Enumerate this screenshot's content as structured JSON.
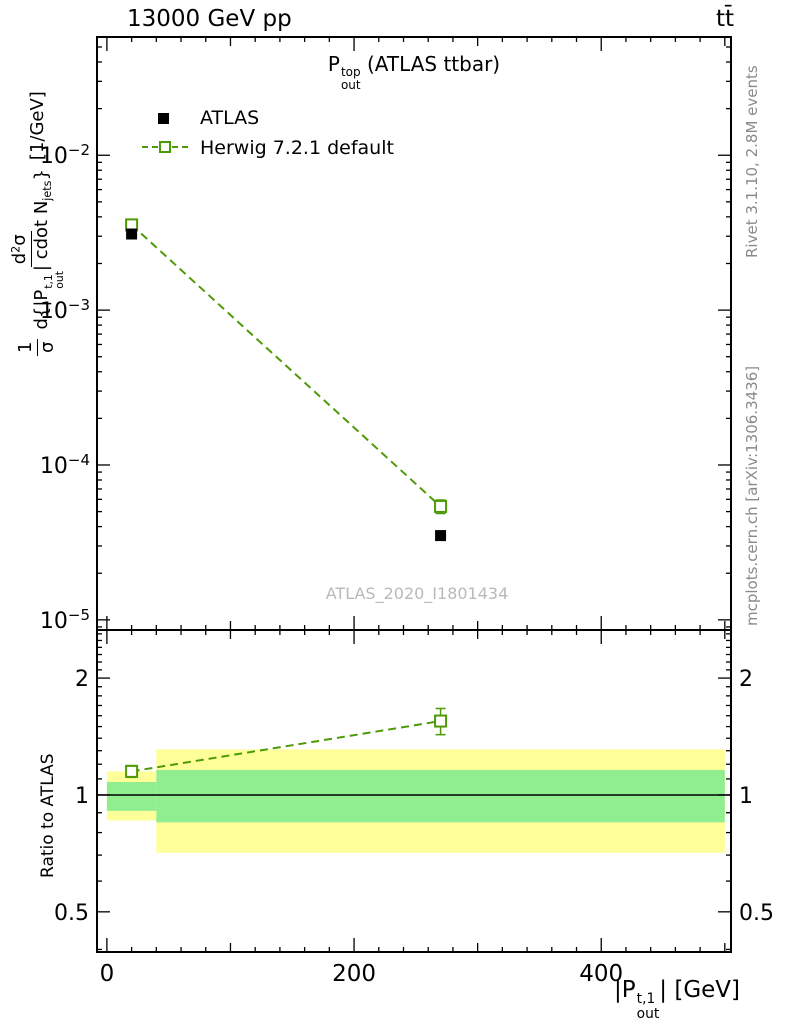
{
  "header": {
    "left_title": "13000 GeV pp",
    "right_title": "tt̄"
  },
  "right_margin": {
    "top": "Rivet 3.1.10,  2.8M events",
    "bottom": "mcplots.cern.ch [arXiv:1306.3436]"
  },
  "main_title": {
    "base": "P",
    "sup": "top",
    "sub": "out",
    "suffix": " (ATLAS ttbar)"
  },
  "legend": {
    "items": [
      {
        "label": "ATLAS",
        "marker": "filled-square",
        "color": "#000000"
      },
      {
        "label": "Herwig 7.2.1 default",
        "marker": "open-square-dashed-line",
        "color": "#4e9a06"
      }
    ]
  },
  "main_panel": {
    "watermark": "ATLAS_2020_I1801434"
  },
  "ylabel_main": {
    "frac1_num": "1",
    "frac1_den": "σ",
    "frac2_num_base": "d",
    "frac2_num_sup": "2",
    "frac2_num_tail": "σ",
    "frac2_den_a": "d{|P",
    "frac2_den_sup": "t,1",
    "frac2_den_sub": "out",
    "frac2_den_b": "| cdot N",
    "frac2_den_sub2": "jets",
    "frac2_den_c": "}",
    "units": "[1/GeV]"
  },
  "ratio_panel": {
    "ylabel": "Ratio to ATLAS"
  },
  "xlabel": {
    "a": "|P",
    "sup": "t,1",
    "sub": "out",
    "b": "| [GeV]"
  },
  "colors": {
    "herwig_green": "#4e9a06",
    "atlas_black": "#000000",
    "band_yellow": "#ffff99",
    "band_green": "#90ee90",
    "frame": "#000000",
    "watermark_gray": "#b9b9b9",
    "margin_text_gray": "#8a8a8a"
  },
  "chart_data": {
    "type": "line",
    "title": "P_out^top (ATLAS ttbar)",
    "xlabel": "|P_out^t,1| [GeV]",
    "xlim": [
      -8,
      505
    ],
    "x_ticks_major": [
      0,
      200,
      400
    ],
    "x_ticks_medium": [
      100,
      300,
      500
    ],
    "x_minor_step": 20,
    "main": {
      "ylabel": "1/σ d²σ/d{|P_out^t,1| cdot N_jets} [1/GeV]",
      "yscale": "log",
      "ylim": [
        8.6e-06,
        0.058
      ],
      "y_ticks": [
        0.01,
        0.001,
        0.0001,
        1e-05
      ],
      "series": [
        {
          "name": "ATLAS",
          "marker": "filled-square",
          "color": "#000000",
          "x": [
            20,
            270
          ],
          "y": [
            0.0031,
            3.5e-05
          ]
        },
        {
          "name": "Herwig 7.2.1 default",
          "marker": "open-square",
          "line": "dashed",
          "color": "#4e9a06",
          "x": [
            20,
            270
          ],
          "y": [
            0.00355,
            5.4e-05
          ],
          "yerr_rel": [
            0.04,
            0.1
          ]
        }
      ]
    },
    "ratio": {
      "ylabel": "Ratio to ATLAS",
      "yscale": "log",
      "ylim": [
        0.394,
        2.66
      ],
      "y_ticks": [
        0.5,
        1,
        2
      ],
      "reference": 1,
      "bands": [
        {
          "x0": 0,
          "x1": 40,
          "yellow": [
            0.86,
            1.15
          ],
          "green": [
            0.91,
            1.08
          ]
        },
        {
          "x0": 40,
          "x1": 500,
          "yellow": [
            0.71,
            1.31
          ],
          "green": [
            0.85,
            1.16
          ]
        }
      ],
      "series": [
        {
          "name": "Herwig 7.2.1 default",
          "color": "#4e9a06",
          "line": "dashed",
          "marker": "open-square",
          "x": [
            20,
            270
          ],
          "y": [
            1.15,
            1.55
          ],
          "yerr": [
            0.04,
            0.12
          ]
        }
      ]
    }
  }
}
